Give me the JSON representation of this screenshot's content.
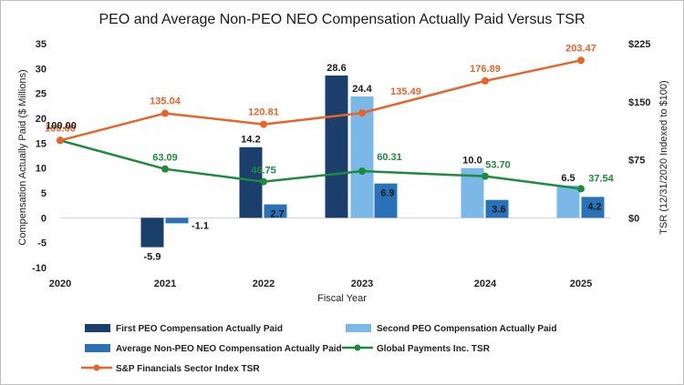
{
  "chart_data": {
    "type": "bar+line",
    "title": "PEO and Average Non-PEO NEO Compensation Actually Paid Versus TSR",
    "xlabel": "Fiscal Year",
    "ylabel": "Compensation Actually Paid ($ Millions)",
    "y2label": "TSR (12/31/2020 Indexed to $100)",
    "categories": [
      "2020",
      "2021",
      "2022",
      "2023",
      "2024",
      "2025"
    ],
    "ylim": [
      -10,
      35
    ],
    "yticks": [
      "-10",
      "-5",
      "0",
      "5",
      "10",
      "15",
      "20",
      "25",
      "30",
      "35"
    ],
    "y2lim": [
      0,
      225
    ],
    "y2ticks": [
      "$0",
      "$75",
      "$150",
      "$225"
    ],
    "bar_series": [
      {
        "name": "First PEO Compensation Actually Paid",
        "color": "#1b3f6b",
        "values": [
          null,
          -5.9,
          14.2,
          28.6,
          null,
          null
        ],
        "labels": [
          "",
          "-5.9",
          "14.2",
          "28.6",
          "",
          ""
        ]
      },
      {
        "name": "Second PEO Compensation Actually Paid",
        "color": "#7ab8e8",
        "values": [
          null,
          null,
          null,
          24.4,
          10.0,
          6.5
        ],
        "labels": [
          "",
          "",
          "",
          "24.4",
          "10.0",
          "6.5"
        ]
      },
      {
        "name": "Average Non-PEO NEO Compensation Actually Paid",
        "color": "#2a72b8",
        "values": [
          null,
          -1.1,
          2.7,
          6.9,
          3.6,
          4.2
        ],
        "labels": [
          "",
          "-1.1",
          "2.7",
          "6.9",
          "3.6",
          "4.2"
        ]
      }
    ],
    "line_series": [
      {
        "name": "Global Payments Inc. TSR",
        "color": "#1e8a3e",
        "values": [
          100.0,
          63.09,
          46.75,
          60.31,
          53.7,
          37.54
        ],
        "labels": [
          "100.00",
          "63.09",
          "46.75",
          "60.31",
          "53.70",
          "37.54"
        ]
      },
      {
        "name": "S&P Financials Sector Index TSR",
        "color": "#e8642a",
        "values": [
          100.0,
          135.04,
          120.81,
          135.49,
          176.89,
          203.47
        ],
        "labels": [
          "100.00",
          "135.04",
          "120.81",
          "135.49",
          "176.89",
          "203.47"
        ]
      }
    ]
  }
}
